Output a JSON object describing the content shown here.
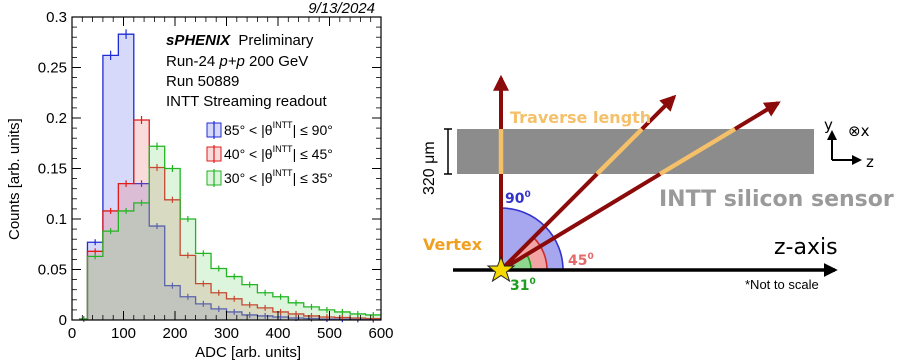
{
  "chart_data": {
    "type": "histogram",
    "date": "9/13/2024",
    "experiment": "sPHENIX",
    "status": "Preliminary",
    "run_info": [
      "Run-24 ",
      "p+p",
      " 200 GeV"
    ],
    "run_number": "Run 50889",
    "readout": "INTT Streaming readout",
    "xlabel": "ADC [arb. units]",
    "ylabel": "Counts [arb. units]",
    "xlim": [
      0,
      600
    ],
    "ylim": [
      0,
      0.3
    ],
    "x_ticks": [
      "0",
      "100",
      "200",
      "300",
      "400",
      "500",
      "600"
    ],
    "y_ticks": [
      "0",
      "0.05",
      "0.1",
      "0.15",
      "0.2",
      "0.25",
      "0.3"
    ],
    "bin_edges": [
      15,
      30,
      60,
      90,
      120,
      150,
      180,
      210,
      240,
      270,
      300,
      330,
      360,
      390,
      420,
      450,
      480,
      510,
      540,
      570,
      600
    ],
    "series": [
      {
        "legend_left": "85° < |θ",
        "legend_sup": "INTT",
        "legend_right": "| ≤ 90°",
        "color": "#1f2bd6",
        "fill": "rgba(120,130,235,0.30)",
        "values": [
          0.001,
          0.077,
          0.262,
          0.283,
          0.135,
          0.093,
          0.034,
          0.023,
          0.016,
          0.011,
          0.008,
          0.005,
          0.004,
          0.003,
          0.002,
          0.0015,
          0.001,
          0.0008,
          0.0006,
          0.0005
        ]
      },
      {
        "legend_left": "40° < |θ",
        "legend_sup": "INTT",
        "legend_right": "| ≤ 45°",
        "color": "#e01b1b",
        "fill": "rgba(235,110,110,0.25)",
        "values": [
          0.001,
          0.068,
          0.108,
          0.135,
          0.198,
          0.151,
          0.119,
          0.064,
          0.036,
          0.027,
          0.021,
          0.015,
          0.012,
          0.008,
          0.006,
          0.004,
          0.003,
          0.0025,
          0.002,
          0.0015
        ]
      },
      {
        "legend_left": "30° < |θ",
        "legend_sup": "INTT",
        "legend_right": "| ≤ 35°",
        "color": "#22b522",
        "fill": "rgba(120,215,120,0.25)",
        "values": [
          0.001,
          0.063,
          0.088,
          0.108,
          0.116,
          0.172,
          0.15,
          0.1,
          0.066,
          0.051,
          0.043,
          0.035,
          0.027,
          0.023,
          0.017,
          0.013,
          0.01,
          0.008,
          0.006,
          0.005
        ]
      }
    ]
  },
  "diagram": {
    "traverse_label": "Traverse length",
    "thickness_label": "320 μm",
    "sensor_label": "INTT silicon sensor",
    "vertex_label": "Vertex",
    "angle_90": "90",
    "angle_45": "45",
    "angle_31": "31",
    "degree_mark": "0",
    "zaxis_label": "z-axis",
    "note": "*Not to scale",
    "coord_y": "y",
    "coord_x": "⊗x",
    "coord_z": "z",
    "colors": {
      "arrow": "#8b0a0a",
      "traverse": "#f5c06a",
      "sensor": "#8c8c8c",
      "vertex": "#f0a020",
      "star": "#f5d800",
      "blue": "#3333cc",
      "red": "#e36a6a",
      "green": "#1e9e1e"
    }
  }
}
